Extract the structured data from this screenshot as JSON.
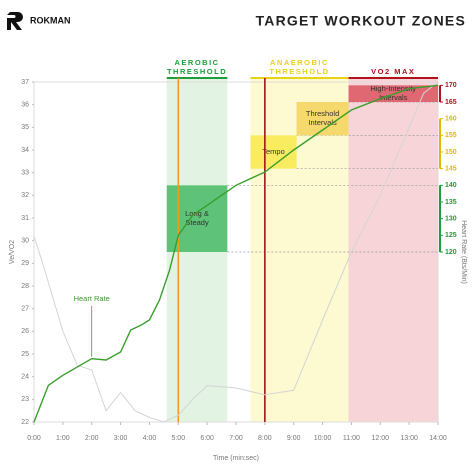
{
  "logo": "ROKMAN",
  "title": "TARGET WORKOUT ZONES",
  "chart_data": {
    "type": "line",
    "x_label": "Time (min:sec)",
    "y_label": "Ve/VO2",
    "y2_label": "Heart Rate (Bts/Min)",
    "xlim": [
      0,
      14
    ],
    "xticks": [
      {
        "value": 0,
        "label": "0:00"
      },
      {
        "value": 1,
        "label": "1:00"
      },
      {
        "value": 2,
        "label": "2:00"
      },
      {
        "value": 3,
        "label": "3:00"
      },
      {
        "value": 4,
        "label": "4:00"
      },
      {
        "value": 5,
        "label": "5:00"
      },
      {
        "value": 6,
        "label": "6:00"
      },
      {
        "value": 7,
        "label": "7:00"
      },
      {
        "value": 8,
        "label": "8:00"
      },
      {
        "value": 9,
        "label": "9:00"
      },
      {
        "value": 10,
        "label": "10:00"
      },
      {
        "value": 11,
        "label": "11:00"
      },
      {
        "value": 12,
        "label": "12:00"
      },
      {
        "value": 13,
        "label": "13:00"
      },
      {
        "value": 14,
        "label": "14:00"
      }
    ],
    "ylim": [
      22,
      37
    ],
    "yticks": [
      22,
      23,
      24,
      25,
      26,
      27,
      28,
      29,
      30,
      31,
      32,
      33,
      34,
      35,
      36,
      37
    ],
    "y2lim": [
      69,
      171
    ],
    "y2ticks": [
      120,
      125,
      130,
      135,
      140,
      145,
      150,
      155,
      160,
      165,
      170
    ],
    "y2_bands": [
      {
        "range": [
          120,
          140
        ],
        "color": "#1f9d3a"
      },
      {
        "range": [
          145,
          160
        ],
        "color": "#e2b900"
      },
      {
        "range": [
          165,
          170
        ],
        "color": "#b3121c"
      }
    ],
    "zones": [
      {
        "name": [
          "AEROBIC",
          "THRESHOLD"
        ],
        "color": "#1f9d3a",
        "fill": "#e2f3e4",
        "x": [
          4.6,
          6.7
        ]
      },
      {
        "name": [
          "ANAEROBIC",
          "THRESHOLD"
        ],
        "color": "#e9d21a",
        "fill": "#fdf9d0",
        "x": [
          7.5,
          10.9
        ]
      },
      {
        "name": [
          "VO2 MAX"
        ],
        "color": "#b3121c",
        "fill": "#f6d4d7",
        "x": [
          10.9,
          14
        ]
      }
    ],
    "boxes": [
      {
        "label": [
          "Long &",
          "Steady"
        ],
        "fill": "#46b865",
        "x": [
          4.6,
          6.7
        ],
        "y": [
          120,
          140
        ]
      },
      {
        "label": [
          "Tempo"
        ],
        "fill": "#f8ea4e",
        "x": [
          7.5,
          9.1
        ],
        "y": [
          145,
          155
        ]
      },
      {
        "label": [
          "Threshold",
          "Intervals"
        ],
        "fill": "#f4d35a",
        "x": [
          9.1,
          10.9
        ],
        "y": [
          155,
          165
        ]
      },
      {
        "label": [
          "High-Intensity",
          "Intervals"
        ],
        "fill": "#dc5560",
        "x": [
          10.9,
          14
        ],
        "y": [
          165,
          170
        ]
      }
    ],
    "markers": [
      {
        "x": 5,
        "color": "#f39a1e"
      },
      {
        "x": 8,
        "color": "#a3141c"
      }
    ],
    "series": [
      {
        "color": "#d4d4d4",
        "x": [
          0,
          0.3,
          1,
          1.5,
          2,
          2.5,
          3,
          3.5,
          4,
          4.5,
          5,
          5.5,
          6,
          7,
          8,
          9,
          10,
          11,
          12,
          13,
          13.5,
          14
        ],
        "values": [
          30.2,
          29,
          26,
          24.5,
          24.3,
          22.5,
          23.3,
          22.5,
          22.2,
          22,
          22.3,
          23,
          23.6,
          23.5,
          23.2,
          23.4,
          26.5,
          29.5,
          32,
          35,
          36.5,
          37
        ]
      },
      {
        "name": "Heart Rate",
        "color": "#3a9e2c",
        "axis": "y2",
        "x": [
          0,
          0.5,
          1,
          2,
          2.5,
          3,
          3.35,
          3.7,
          4,
          4.35,
          4.7,
          5,
          5.5,
          6,
          7,
          8,
          9,
          10,
          11,
          12,
          13,
          14
        ],
        "values": [
          69,
          80,
          83,
          88,
          87.6,
          90,
          96.6,
          98,
          99.6,
          105.6,
          114.6,
          125,
          131,
          134,
          140,
          144,
          150.6,
          156.6,
          162.6,
          166,
          169,
          170
        ]
      }
    ]
  }
}
